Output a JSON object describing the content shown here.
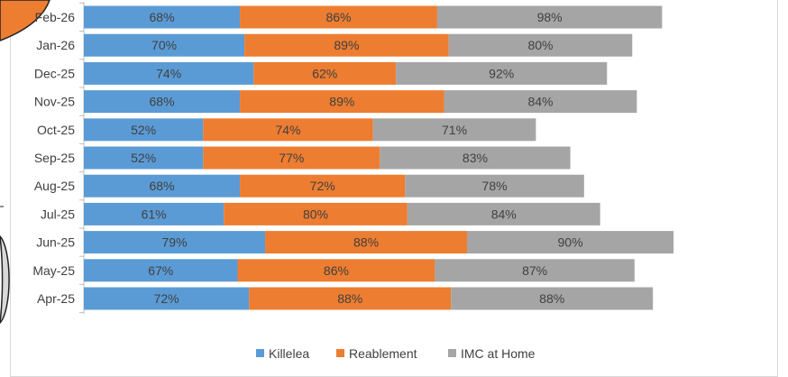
{
  "chart_data": {
    "type": "bar",
    "orientation": "horizontal",
    "stacking": "stacked",
    "categories": [
      "Feb-26",
      "Jan-26",
      "Dec-25",
      "Nov-25",
      "Oct-25",
      "Sep-25",
      "Aug-25",
      "Jul-25",
      "Jun-25",
      "May-25",
      "Apr-25"
    ],
    "series": [
      {
        "name": "Killelea",
        "color": "#5b9bd5",
        "values": [
          68,
          70,
          74,
          68,
          52,
          52,
          68,
          61,
          79,
          67,
          72
        ]
      },
      {
        "name": "Reablement",
        "color": "#ed7d31",
        "values": [
          86,
          89,
          62,
          89,
          74,
          77,
          72,
          80,
          88,
          86,
          88
        ]
      },
      {
        "name": "IMC at Home",
        "color": "#a5a5a5",
        "values": [
          98,
          80,
          92,
          84,
          71,
          83,
          78,
          84,
          90,
          87,
          88
        ]
      }
    ],
    "value_suffix": "%",
    "xlim": [
      0,
      300
    ],
    "grid": false,
    "legend_position": "bottom"
  }
}
